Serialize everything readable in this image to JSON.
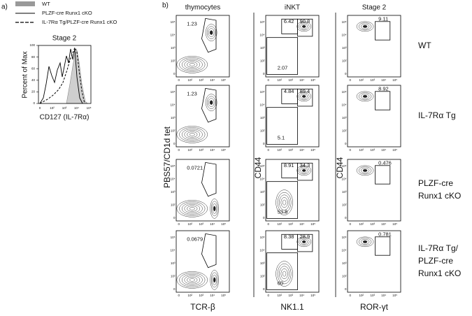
{
  "panel_a": {
    "label": "a)",
    "legend": [
      "WT",
      "PLZF-cre Runx1 cKO",
      "IL-7Rα Tg/PLZF-cre Runx1 cKO"
    ],
    "title": "Stage 2",
    "y_label": "Percent of Max",
    "x_label": "CD127 (IL-7Rα)",
    "yticks": [
      "0",
      "20",
      "40",
      "60",
      "80",
      "100"
    ],
    "xticks": [
      "0",
      "10²",
      "10³",
      "10⁴",
      "10⁵"
    ]
  },
  "panel_b": {
    "label": "b)",
    "columns": [
      "thymocytes",
      "iNKT",
      "Stage 2"
    ],
    "y_labels": [
      "PBS57/CD1d tet",
      "CD44",
      "CD44"
    ],
    "x_labels": [
      "TCR-β",
      "NK1.1",
      "ROR-γt"
    ],
    "flow_ticks": [
      "0",
      "10²",
      "10³",
      "10⁴",
      "10⁵"
    ],
    "rows": [
      {
        "label": [
          "WT"
        ],
        "thymocytes": "1.23",
        "inkt": [
          "6.42",
          "90.8",
          "2.07"
        ],
        "stage2": "9.11"
      },
      {
        "label": [
          "IL-7Rα Tg"
        ],
        "thymocytes": "1.23",
        "inkt": [
          "4.84",
          "89.4",
          "5.1"
        ],
        "stage2": "8.92"
      },
      {
        "label": [
          "PLZF-cre",
          "Runx1 cKO"
        ],
        "thymocytes": "0.0721",
        "inkt": [
          "8.91",
          "34.3",
          "53.8"
        ],
        "stage2": "0.476"
      },
      {
        "label": [
          "IL-7Rα Tg/",
          "PLZF-cre",
          "Runx1 cKO"
        ],
        "thymocytes": "0.0679",
        "inkt": [
          "8.38",
          "28.9",
          "60"
        ],
        "stage2": "0.781"
      }
    ]
  }
}
